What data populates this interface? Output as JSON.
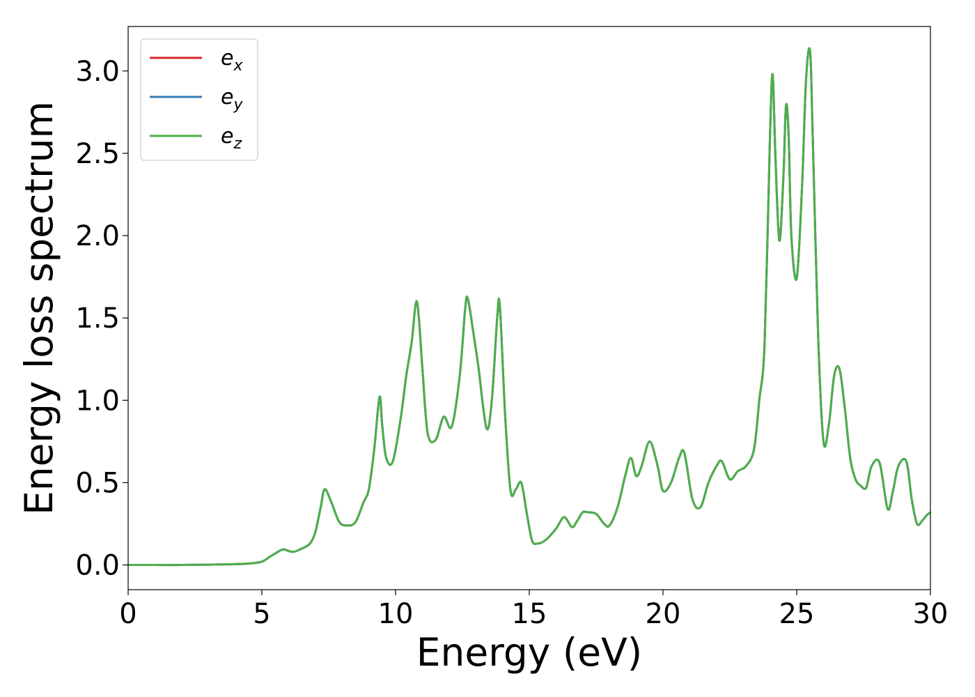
{
  "chart_data": {
    "type": "line",
    "title": "",
    "xlabel": "Energy (eV)",
    "ylabel": "Energy loss spectrum",
    "xlim": [
      0,
      30
    ],
    "ylim": [
      -0.15,
      3.27
    ],
    "xticks": [
      0,
      5,
      10,
      15,
      20,
      25,
      30
    ],
    "xtick_labels": [
      "0",
      "5",
      "10",
      "15",
      "20",
      "25",
      "30"
    ],
    "yticks": [
      0.0,
      0.5,
      1.0,
      1.5,
      2.0,
      2.5,
      3.0
    ],
    "ytick_labels": [
      "0.0",
      "0.5",
      "1.0",
      "1.5",
      "2.0",
      "2.5",
      "3.0"
    ],
    "grid": false,
    "legend_position": "top-left",
    "series": [
      {
        "name": "e_x",
        "legend_base": "e",
        "legend_sub": "x",
        "color": "#d62728"
      },
      {
        "name": "e_y",
        "legend_base": "e",
        "legend_sub": "y",
        "color": "#377eb8"
      },
      {
        "name": "e_z",
        "legend_base": "e",
        "legend_sub": "z",
        "color": "#4daf4a"
      }
    ],
    "x": [
      0,
      1,
      2,
      3,
      4,
      4.6,
      5.0,
      5.3,
      5.6,
      5.8,
      6.0,
      6.2,
      6.5,
      6.8,
      7.0,
      7.2,
      7.35,
      7.6,
      7.9,
      8.2,
      8.5,
      8.8,
      9.0,
      9.2,
      9.4,
      9.5,
      9.65,
      9.9,
      10.2,
      10.4,
      10.6,
      10.8,
      11.0,
      11.2,
      11.5,
      11.8,
      12.1,
      12.4,
      12.6,
      12.7,
      12.9,
      13.1,
      13.4,
      13.6,
      13.8,
      13.9,
      14.1,
      14.3,
      14.5,
      14.7,
      14.9,
      15.1,
      15.3,
      15.6,
      16.0,
      16.3,
      16.6,
      16.8,
      17.0,
      17.2,
      17.5,
      17.8,
      18.0,
      18.3,
      18.6,
      18.8,
      19.0,
      19.2,
      19.5,
      19.8,
      20.0,
      20.3,
      20.6,
      20.8,
      21.1,
      21.4,
      21.7,
      22.0,
      22.2,
      22.5,
      22.8,
      23.1,
      23.4,
      23.6,
      23.8,
      24.0,
      24.1,
      24.2,
      24.35,
      24.5,
      24.6,
      24.7,
      24.8,
      25.0,
      25.2,
      25.35,
      25.5,
      25.6,
      25.8,
      26.0,
      26.2,
      26.4,
      26.6,
      26.8,
      27.0,
      27.2,
      27.4,
      27.6,
      27.8,
      28.1,
      28.4,
      28.6,
      28.8,
      29.1,
      29.3,
      29.5,
      29.7,
      29.85,
      30.0
    ],
    "y": [
      0.0,
      0.0,
      0.0,
      0.002,
      0.005,
      0.01,
      0.02,
      0.05,
      0.08,
      0.095,
      0.085,
      0.08,
      0.1,
      0.13,
      0.2,
      0.35,
      0.46,
      0.38,
      0.26,
      0.24,
      0.26,
      0.38,
      0.46,
      0.7,
      1.02,
      0.85,
      0.65,
      0.63,
      0.9,
      1.15,
      1.35,
      1.6,
      1.2,
      0.8,
      0.76,
      0.9,
      0.84,
      1.15,
      1.55,
      1.62,
      1.42,
      1.2,
      0.83,
      1.0,
      1.5,
      1.57,
      0.9,
      0.45,
      0.46,
      0.5,
      0.32,
      0.15,
      0.13,
      0.15,
      0.22,
      0.29,
      0.23,
      0.27,
      0.32,
      0.32,
      0.31,
      0.25,
      0.24,
      0.35,
      0.55,
      0.65,
      0.54,
      0.6,
      0.75,
      0.6,
      0.45,
      0.5,
      0.65,
      0.68,
      0.4,
      0.35,
      0.5,
      0.6,
      0.63,
      0.52,
      0.57,
      0.6,
      0.7,
      1.0,
      1.35,
      2.6,
      2.98,
      2.5,
      1.97,
      2.35,
      2.79,
      2.6,
      2.0,
      1.74,
      2.3,
      2.95,
      3.12,
      2.6,
      1.4,
      0.75,
      0.85,
      1.15,
      1.19,
      0.95,
      0.65,
      0.52,
      0.48,
      0.47,
      0.6,
      0.62,
      0.34,
      0.45,
      0.6,
      0.63,
      0.4,
      0.25,
      0.27,
      0.3,
      0.32
    ]
  }
}
